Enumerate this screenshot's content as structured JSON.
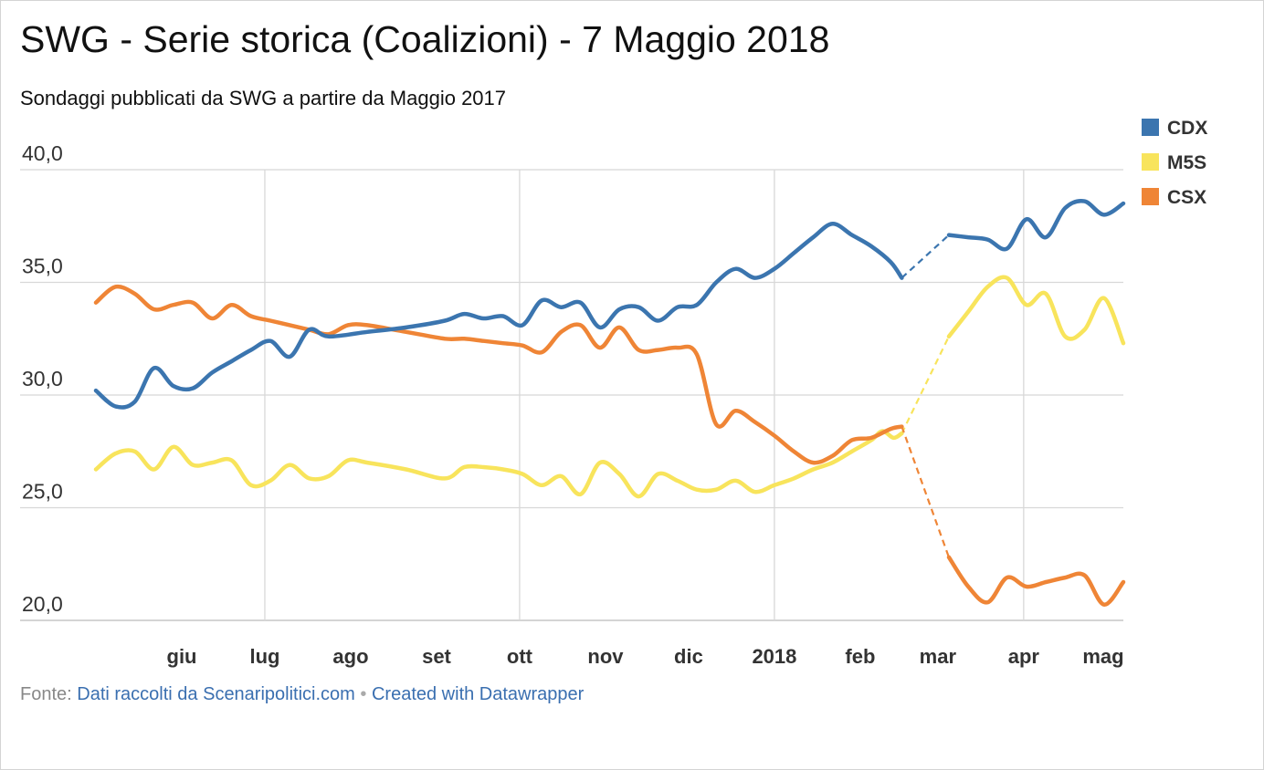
{
  "header": {
    "title": "SWG - Serie storica (Coalizioni) - 7 Maggio 2018",
    "subtitle": "Sondaggi pubblicati da SWG a partire da Maggio 2017"
  },
  "footer": {
    "source_label": "Fonte:",
    "source_link": "Dati raccolti da Scenaripolitici.com",
    "separator": "•",
    "credit_link": "Created with Datawrapper"
  },
  "colors": {
    "CDX": "#3b75af",
    "M5S": "#f8e45c",
    "CSX": "#ef8536"
  },
  "chart_data": {
    "type": "line",
    "title": "SWG - Serie storica (Coalizioni) - 7 Maggio 2018",
    "subtitle": "Sondaggi pubblicati da SWG a partire da Maggio 2017",
    "x_unit": "date",
    "x_ticks": [
      {
        "label": "giu",
        "date": "2017-06-01"
      },
      {
        "label": "lug",
        "date": "2017-07-01"
      },
      {
        "label": "ago",
        "date": "2017-08-01"
      },
      {
        "label": "set",
        "date": "2017-09-01"
      },
      {
        "label": "ott",
        "date": "2017-10-01"
      },
      {
        "label": "nov",
        "date": "2017-11-01"
      },
      {
        "label": "dic",
        "date": "2017-12-01"
      },
      {
        "label": "2018",
        "date": "2018-01-01"
      },
      {
        "label": "feb",
        "date": "2018-02-01"
      },
      {
        "label": "mar",
        "date": "2018-03-01"
      },
      {
        "label": "apr",
        "date": "2018-04-01"
      },
      {
        "label": "mag",
        "date": "2018-05-01"
      }
    ],
    "xlim": [
      "2017-05-01",
      "2018-05-07"
    ],
    "y_ticks": [
      {
        "label": "40,0",
        "value": 40
      },
      {
        "label": "35,0",
        "value": 35
      },
      {
        "label": "30,0",
        "value": 30
      },
      {
        "label": "25,0",
        "value": 25
      },
      {
        "label": "20,0",
        "value": 20
      }
    ],
    "ylim": [
      20,
      40
    ],
    "grid": true,
    "legend_position": "top-right",
    "gap": {
      "from": "2018-02-16",
      "to": "2018-03-05",
      "style": "dashed"
    },
    "series": [
      {
        "name": "CDX",
        "points": [
          [
            "2017-05-01",
            30.2
          ],
          [
            "2017-05-08",
            29.5
          ],
          [
            "2017-05-15",
            29.7
          ],
          [
            "2017-05-22",
            31.2
          ],
          [
            "2017-05-29",
            30.4
          ],
          [
            "2017-06-05",
            30.3
          ],
          [
            "2017-06-12",
            31.0
          ],
          [
            "2017-06-19",
            31.5
          ],
          [
            "2017-06-26",
            32.0
          ],
          [
            "2017-07-03",
            32.4
          ],
          [
            "2017-07-10",
            31.7
          ],
          [
            "2017-07-17",
            32.9
          ],
          [
            "2017-07-24",
            32.6
          ],
          [
            "2017-08-07",
            32.8
          ],
          [
            "2017-08-21",
            33.0
          ],
          [
            "2017-09-04",
            33.3
          ],
          [
            "2017-09-11",
            33.6
          ],
          [
            "2017-09-18",
            33.4
          ],
          [
            "2017-09-25",
            33.5
          ],
          [
            "2017-10-02",
            33.1
          ],
          [
            "2017-10-09",
            34.2
          ],
          [
            "2017-10-16",
            33.9
          ],
          [
            "2017-10-23",
            34.1
          ],
          [
            "2017-10-30",
            33.0
          ],
          [
            "2017-11-06",
            33.8
          ],
          [
            "2017-11-13",
            33.9
          ],
          [
            "2017-11-20",
            33.3
          ],
          [
            "2017-11-27",
            33.9
          ],
          [
            "2017-12-04",
            34.0
          ],
          [
            "2017-12-11",
            35.0
          ],
          [
            "2017-12-18",
            35.6
          ],
          [
            "2017-12-25",
            35.2
          ],
          [
            "2018-01-01",
            35.6
          ],
          [
            "2018-01-08",
            36.3
          ],
          [
            "2018-01-15",
            37.0
          ],
          [
            "2018-01-22",
            37.6
          ],
          [
            "2018-01-29",
            37.1
          ],
          [
            "2018-02-05",
            36.6
          ],
          [
            "2018-02-12",
            35.9
          ],
          [
            "2018-02-16",
            35.2
          ],
          [
            "2018-03-05",
            37.1
          ],
          [
            "2018-03-12",
            37.0
          ],
          [
            "2018-03-19",
            36.9
          ],
          [
            "2018-03-26",
            36.5
          ],
          [
            "2018-04-02",
            37.8
          ],
          [
            "2018-04-09",
            37.0
          ],
          [
            "2018-04-16",
            38.3
          ],
          [
            "2018-04-23",
            38.6
          ],
          [
            "2018-04-30",
            38.0
          ],
          [
            "2018-05-07",
            38.5
          ]
        ]
      },
      {
        "name": "M5S",
        "points": [
          [
            "2017-05-01",
            26.7
          ],
          [
            "2017-05-08",
            27.4
          ],
          [
            "2017-05-15",
            27.5
          ],
          [
            "2017-05-22",
            26.7
          ],
          [
            "2017-05-29",
            27.7
          ],
          [
            "2017-06-05",
            26.9
          ],
          [
            "2017-06-12",
            27.0
          ],
          [
            "2017-06-19",
            27.1
          ],
          [
            "2017-06-26",
            26.0
          ],
          [
            "2017-07-03",
            26.2
          ],
          [
            "2017-07-10",
            26.9
          ],
          [
            "2017-07-17",
            26.3
          ],
          [
            "2017-07-24",
            26.4
          ],
          [
            "2017-07-31",
            27.1
          ],
          [
            "2017-08-07",
            27.0
          ],
          [
            "2017-08-21",
            26.7
          ],
          [
            "2017-09-04",
            26.3
          ],
          [
            "2017-09-11",
            26.8
          ],
          [
            "2017-09-18",
            26.8
          ],
          [
            "2017-09-25",
            26.7
          ],
          [
            "2017-10-02",
            26.5
          ],
          [
            "2017-10-09",
            26.0
          ],
          [
            "2017-10-16",
            26.4
          ],
          [
            "2017-10-23",
            25.6
          ],
          [
            "2017-10-30",
            27.0
          ],
          [
            "2017-11-06",
            26.5
          ],
          [
            "2017-11-13",
            25.5
          ],
          [
            "2017-11-20",
            26.5
          ],
          [
            "2017-11-27",
            26.2
          ],
          [
            "2017-12-04",
            25.8
          ],
          [
            "2017-12-11",
            25.8
          ],
          [
            "2017-12-18",
            26.2
          ],
          [
            "2017-12-25",
            25.7
          ],
          [
            "2018-01-01",
            26.0
          ],
          [
            "2018-01-08",
            26.3
          ],
          [
            "2018-01-15",
            26.7
          ],
          [
            "2018-01-22",
            27.0
          ],
          [
            "2018-01-29",
            27.5
          ],
          [
            "2018-02-05",
            28.0
          ],
          [
            "2018-02-09",
            28.4
          ],
          [
            "2018-02-13",
            28.1
          ],
          [
            "2018-02-16",
            28.3
          ],
          [
            "2018-03-05",
            32.6
          ],
          [
            "2018-03-12",
            33.7
          ],
          [
            "2018-03-19",
            34.8
          ],
          [
            "2018-03-26",
            35.2
          ],
          [
            "2018-04-02",
            34.0
          ],
          [
            "2018-04-09",
            34.5
          ],
          [
            "2018-04-16",
            32.6
          ],
          [
            "2018-04-23",
            32.9
          ],
          [
            "2018-04-30",
            34.3
          ],
          [
            "2018-05-07",
            32.3
          ]
        ]
      },
      {
        "name": "CSX",
        "points": [
          [
            "2017-05-01",
            34.1
          ],
          [
            "2017-05-08",
            34.8
          ],
          [
            "2017-05-15",
            34.5
          ],
          [
            "2017-05-22",
            33.8
          ],
          [
            "2017-05-29",
            34.0
          ],
          [
            "2017-06-05",
            34.1
          ],
          [
            "2017-06-12",
            33.4
          ],
          [
            "2017-06-19",
            34.0
          ],
          [
            "2017-06-26",
            33.5
          ],
          [
            "2017-07-03",
            33.3
          ],
          [
            "2017-07-10",
            33.1
          ],
          [
            "2017-07-17",
            32.9
          ],
          [
            "2017-07-24",
            32.7
          ],
          [
            "2017-07-31",
            33.1
          ],
          [
            "2017-08-07",
            33.1
          ],
          [
            "2017-08-21",
            32.8
          ],
          [
            "2017-09-04",
            32.5
          ],
          [
            "2017-09-11",
            32.5
          ],
          [
            "2017-09-18",
            32.4
          ],
          [
            "2017-09-25",
            32.3
          ],
          [
            "2017-10-02",
            32.2
          ],
          [
            "2017-10-09",
            31.9
          ],
          [
            "2017-10-16",
            32.8
          ],
          [
            "2017-10-23",
            33.1
          ],
          [
            "2017-10-30",
            32.1
          ],
          [
            "2017-11-06",
            33.0
          ],
          [
            "2017-11-13",
            32.0
          ],
          [
            "2017-11-20",
            32.0
          ],
          [
            "2017-11-27",
            32.1
          ],
          [
            "2017-12-04",
            31.8
          ],
          [
            "2017-12-11",
            28.7
          ],
          [
            "2017-12-18",
            29.3
          ],
          [
            "2017-12-25",
            28.8
          ],
          [
            "2018-01-01",
            28.2
          ],
          [
            "2018-01-08",
            27.5
          ],
          [
            "2018-01-15",
            27.0
          ],
          [
            "2018-01-22",
            27.3
          ],
          [
            "2018-01-29",
            28.0
          ],
          [
            "2018-02-05",
            28.1
          ],
          [
            "2018-02-12",
            28.5
          ],
          [
            "2018-02-16",
            28.6
          ],
          [
            "2018-03-05",
            22.8
          ],
          [
            "2018-03-12",
            21.5
          ],
          [
            "2018-03-19",
            20.8
          ],
          [
            "2018-03-26",
            21.9
          ],
          [
            "2018-04-02",
            21.5
          ],
          [
            "2018-04-09",
            21.7
          ],
          [
            "2018-04-16",
            21.9
          ],
          [
            "2018-04-23",
            22.0
          ],
          [
            "2018-04-30",
            20.7
          ],
          [
            "2018-05-07",
            21.7
          ]
        ]
      }
    ]
  }
}
